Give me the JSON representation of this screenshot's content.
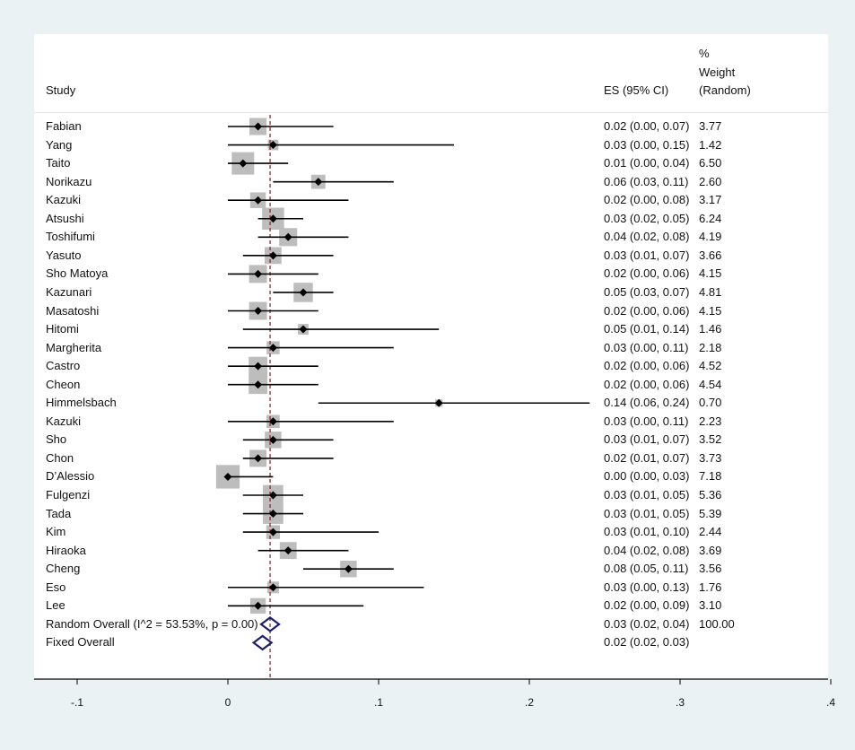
{
  "header": {
    "study": "Study",
    "es": "ES (95% CI)",
    "weight_line1": "%",
    "weight_line2": "Weight",
    "weight_line3": "(Random)"
  },
  "chart_data": {
    "type": "forest",
    "xlim": [
      -0.1,
      0.4
    ],
    "xticks": [
      -0.1,
      0,
      0.1,
      0.2,
      0.3,
      0.4
    ],
    "xtick_labels": [
      "-.1",
      "0",
      ".1",
      ".2",
      ".3",
      ".4"
    ],
    "reference_line": 0.028,
    "studies": [
      {
        "name": "Fabian",
        "es": 0.02,
        "lo": 0.0,
        "hi": 0.07,
        "weight": 3.77,
        "es_text": "0.02 (0.00, 0.07)",
        "weight_text": "3.77"
      },
      {
        "name": "Yang",
        "es": 0.03,
        "lo": 0.0,
        "hi": 0.15,
        "weight": 1.42,
        "es_text": "0.03 (0.00, 0.15)",
        "weight_text": "1.42"
      },
      {
        "name": "Taito",
        "es": 0.01,
        "lo": 0.0,
        "hi": 0.04,
        "weight": 6.5,
        "es_text": "0.01 (0.00, 0.04)",
        "weight_text": "6.50"
      },
      {
        "name": "Norikazu",
        "es": 0.06,
        "lo": 0.03,
        "hi": 0.11,
        "weight": 2.6,
        "es_text": "0.06 (0.03, 0.11)",
        "weight_text": "2.60"
      },
      {
        "name": "Kazuki",
        "es": 0.02,
        "lo": 0.0,
        "hi": 0.08,
        "weight": 3.17,
        "es_text": "0.02 (0.00, 0.08)",
        "weight_text": "3.17"
      },
      {
        "name": "Atsushi",
        "es": 0.03,
        "lo": 0.02,
        "hi": 0.05,
        "weight": 6.24,
        "es_text": "0.03 (0.02, 0.05)",
        "weight_text": "6.24"
      },
      {
        "name": "Toshifumi",
        "es": 0.04,
        "lo": 0.02,
        "hi": 0.08,
        "weight": 4.19,
        "es_text": "0.04 (0.02, 0.08)",
        "weight_text": "4.19"
      },
      {
        "name": "Yasuto",
        "es": 0.03,
        "lo": 0.01,
        "hi": 0.07,
        "weight": 3.66,
        "es_text": "0.03 (0.01, 0.07)",
        "weight_text": "3.66"
      },
      {
        "name": "Sho Matoya",
        "es": 0.02,
        "lo": 0.0,
        "hi": 0.06,
        "weight": 4.15,
        "es_text": "0.02 (0.00, 0.06)",
        "weight_text": "4.15"
      },
      {
        "name": "Kazunari",
        "es": 0.05,
        "lo": 0.03,
        "hi": 0.07,
        "weight": 4.81,
        "es_text": "0.05 (0.03, 0.07)",
        "weight_text": "4.81"
      },
      {
        "name": "Masatoshi",
        "es": 0.02,
        "lo": 0.0,
        "hi": 0.06,
        "weight": 4.15,
        "es_text": "0.02 (0.00, 0.06)",
        "weight_text": "4.15"
      },
      {
        "name": "Hitomi",
        "es": 0.05,
        "lo": 0.01,
        "hi": 0.14,
        "weight": 1.46,
        "es_text": "0.05 (0.01, 0.14)",
        "weight_text": "1.46"
      },
      {
        "name": "Margherita",
        "es": 0.03,
        "lo": 0.0,
        "hi": 0.11,
        "weight": 2.18,
        "es_text": "0.03 (0.00, 0.11)",
        "weight_text": "2.18"
      },
      {
        "name": "Castro",
        "es": 0.02,
        "lo": 0.0,
        "hi": 0.06,
        "weight": 4.52,
        "es_text": "0.02 (0.00, 0.06)",
        "weight_text": "4.52"
      },
      {
        "name": "Cheon",
        "es": 0.02,
        "lo": 0.0,
        "hi": 0.06,
        "weight": 4.54,
        "es_text": "0.02 (0.00, 0.06)",
        "weight_text": "4.54"
      },
      {
        "name": "Himmelsbach",
        "es": 0.14,
        "lo": 0.06,
        "hi": 0.24,
        "weight": 0.7,
        "es_text": "0.14 (0.06, 0.24)",
        "weight_text": "0.70"
      },
      {
        "name": "Kazuki",
        "es": 0.03,
        "lo": 0.0,
        "hi": 0.11,
        "weight": 2.23,
        "es_text": "0.03 (0.00, 0.11)",
        "weight_text": "2.23"
      },
      {
        "name": "Sho",
        "es": 0.03,
        "lo": 0.01,
        "hi": 0.07,
        "weight": 3.52,
        "es_text": "0.03 (0.01, 0.07)",
        "weight_text": "3.52"
      },
      {
        "name": "Chon",
        "es": 0.02,
        "lo": 0.01,
        "hi": 0.07,
        "weight": 3.73,
        "es_text": "0.02 (0.01, 0.07)",
        "weight_text": "3.73"
      },
      {
        "name": "D’Alessio",
        "es": 0.0,
        "lo": 0.0,
        "hi": 0.03,
        "weight": 7.18,
        "es_text": "0.00 (0.00, 0.03)",
        "weight_text": "7.18"
      },
      {
        "name": "Fulgenzi",
        "es": 0.03,
        "lo": 0.01,
        "hi": 0.05,
        "weight": 5.36,
        "es_text": "0.03 (0.01, 0.05)",
        "weight_text": "5.36"
      },
      {
        "name": "Tada",
        "es": 0.03,
        "lo": 0.01,
        "hi": 0.05,
        "weight": 5.39,
        "es_text": "0.03 (0.01, 0.05)",
        "weight_text": "5.39"
      },
      {
        "name": "Kim",
        "es": 0.03,
        "lo": 0.01,
        "hi": 0.1,
        "weight": 2.44,
        "es_text": "0.03 (0.01, 0.10)",
        "weight_text": "2.44"
      },
      {
        "name": "Hiraoka",
        "es": 0.04,
        "lo": 0.02,
        "hi": 0.08,
        "weight": 3.69,
        "es_text": "0.04 (0.02, 0.08)",
        "weight_text": "3.69"
      },
      {
        "name": "Cheng",
        "es": 0.08,
        "lo": 0.05,
        "hi": 0.11,
        "weight": 3.56,
        "es_text": "0.08 (0.05, 0.11)",
        "weight_text": "3.56"
      },
      {
        "name": "Eso",
        "es": 0.03,
        "lo": 0.0,
        "hi": 0.13,
        "weight": 1.76,
        "es_text": "0.03 (0.00, 0.13)",
        "weight_text": "1.76"
      },
      {
        "name": "Lee",
        "es": 0.02,
        "lo": 0.0,
        "hi": 0.09,
        "weight": 3.1,
        "es_text": "0.02 (0.00, 0.09)",
        "weight_text": "3.10"
      }
    ],
    "overall": [
      {
        "name": "Random Overall  (I^2 = 53.53%, p = 0.00)",
        "es": 0.028,
        "lo": 0.02,
        "hi": 0.04,
        "es_text": "0.03 (0.02, 0.04)",
        "weight_text": "100.00"
      },
      {
        "name": "Fixed Overall",
        "es": 0.023,
        "lo": 0.02,
        "hi": 0.03,
        "es_text": "0.02 (0.02, 0.03)",
        "weight_text": ""
      }
    ],
    "colors": {
      "marker": "#000000",
      "box": "#bdbdbd",
      "diamond": "#1a1f6e",
      "refline": "#8b1a2b",
      "axis": "#000000"
    }
  }
}
